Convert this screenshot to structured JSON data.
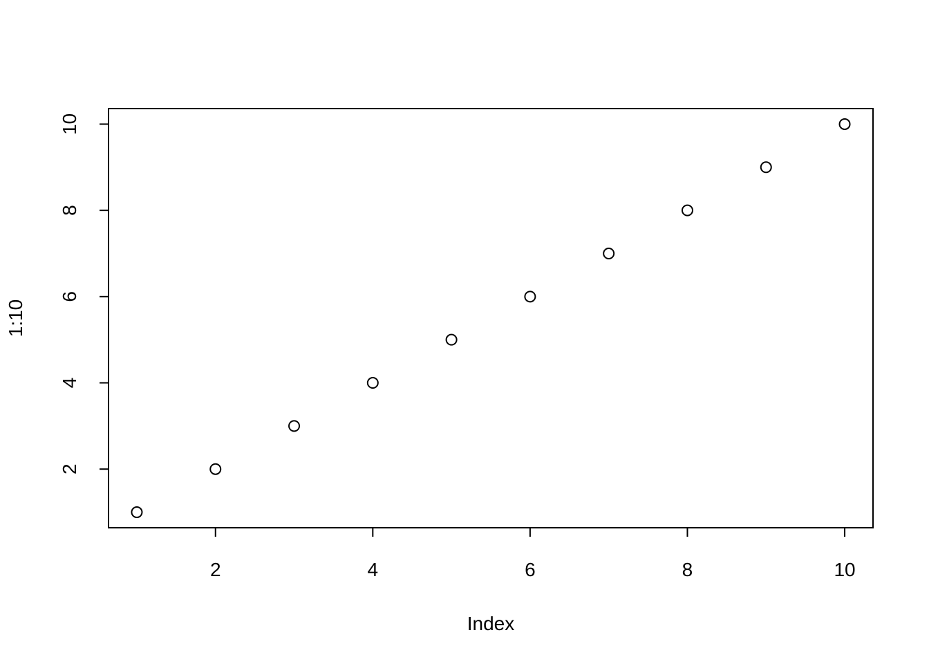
{
  "chart_data": {
    "type": "scatter",
    "title": "",
    "xlabel": "Index",
    "ylabel": "1:10",
    "x": [
      1,
      2,
      3,
      4,
      5,
      6,
      7,
      8,
      9,
      10
    ],
    "y": [
      1,
      2,
      3,
      4,
      5,
      6,
      7,
      8,
      9,
      10
    ],
    "xlim": [
      0.64,
      10.36
    ],
    "ylim": [
      0.64,
      10.36
    ],
    "xticks": [
      2,
      4,
      6,
      8,
      10
    ],
    "yticks": [
      2,
      4,
      6,
      8,
      10
    ],
    "marker": "open-circle",
    "grid": false,
    "colors": {
      "points": "#000000",
      "axes": "#000000",
      "background": "#ffffff"
    }
  }
}
